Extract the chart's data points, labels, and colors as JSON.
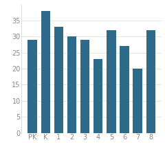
{
  "categories": [
    "PK",
    "K",
    "1",
    "2",
    "3",
    "4",
    "5",
    "6",
    "7",
    "8"
  ],
  "values": [
    29,
    38,
    33,
    30,
    29,
    23,
    32,
    27,
    20,
    32
  ],
  "bar_color": "#2e6b8a",
  "ylim": [
    0,
    40
  ],
  "yticks": [
    0,
    5,
    10,
    15,
    20,
    25,
    30,
    35
  ],
  "background_color": "#ffffff",
  "spine_color": "#cccccc",
  "tick_color": "#888888",
  "tick_fontsize": 7.0,
  "bar_width": 0.7
}
